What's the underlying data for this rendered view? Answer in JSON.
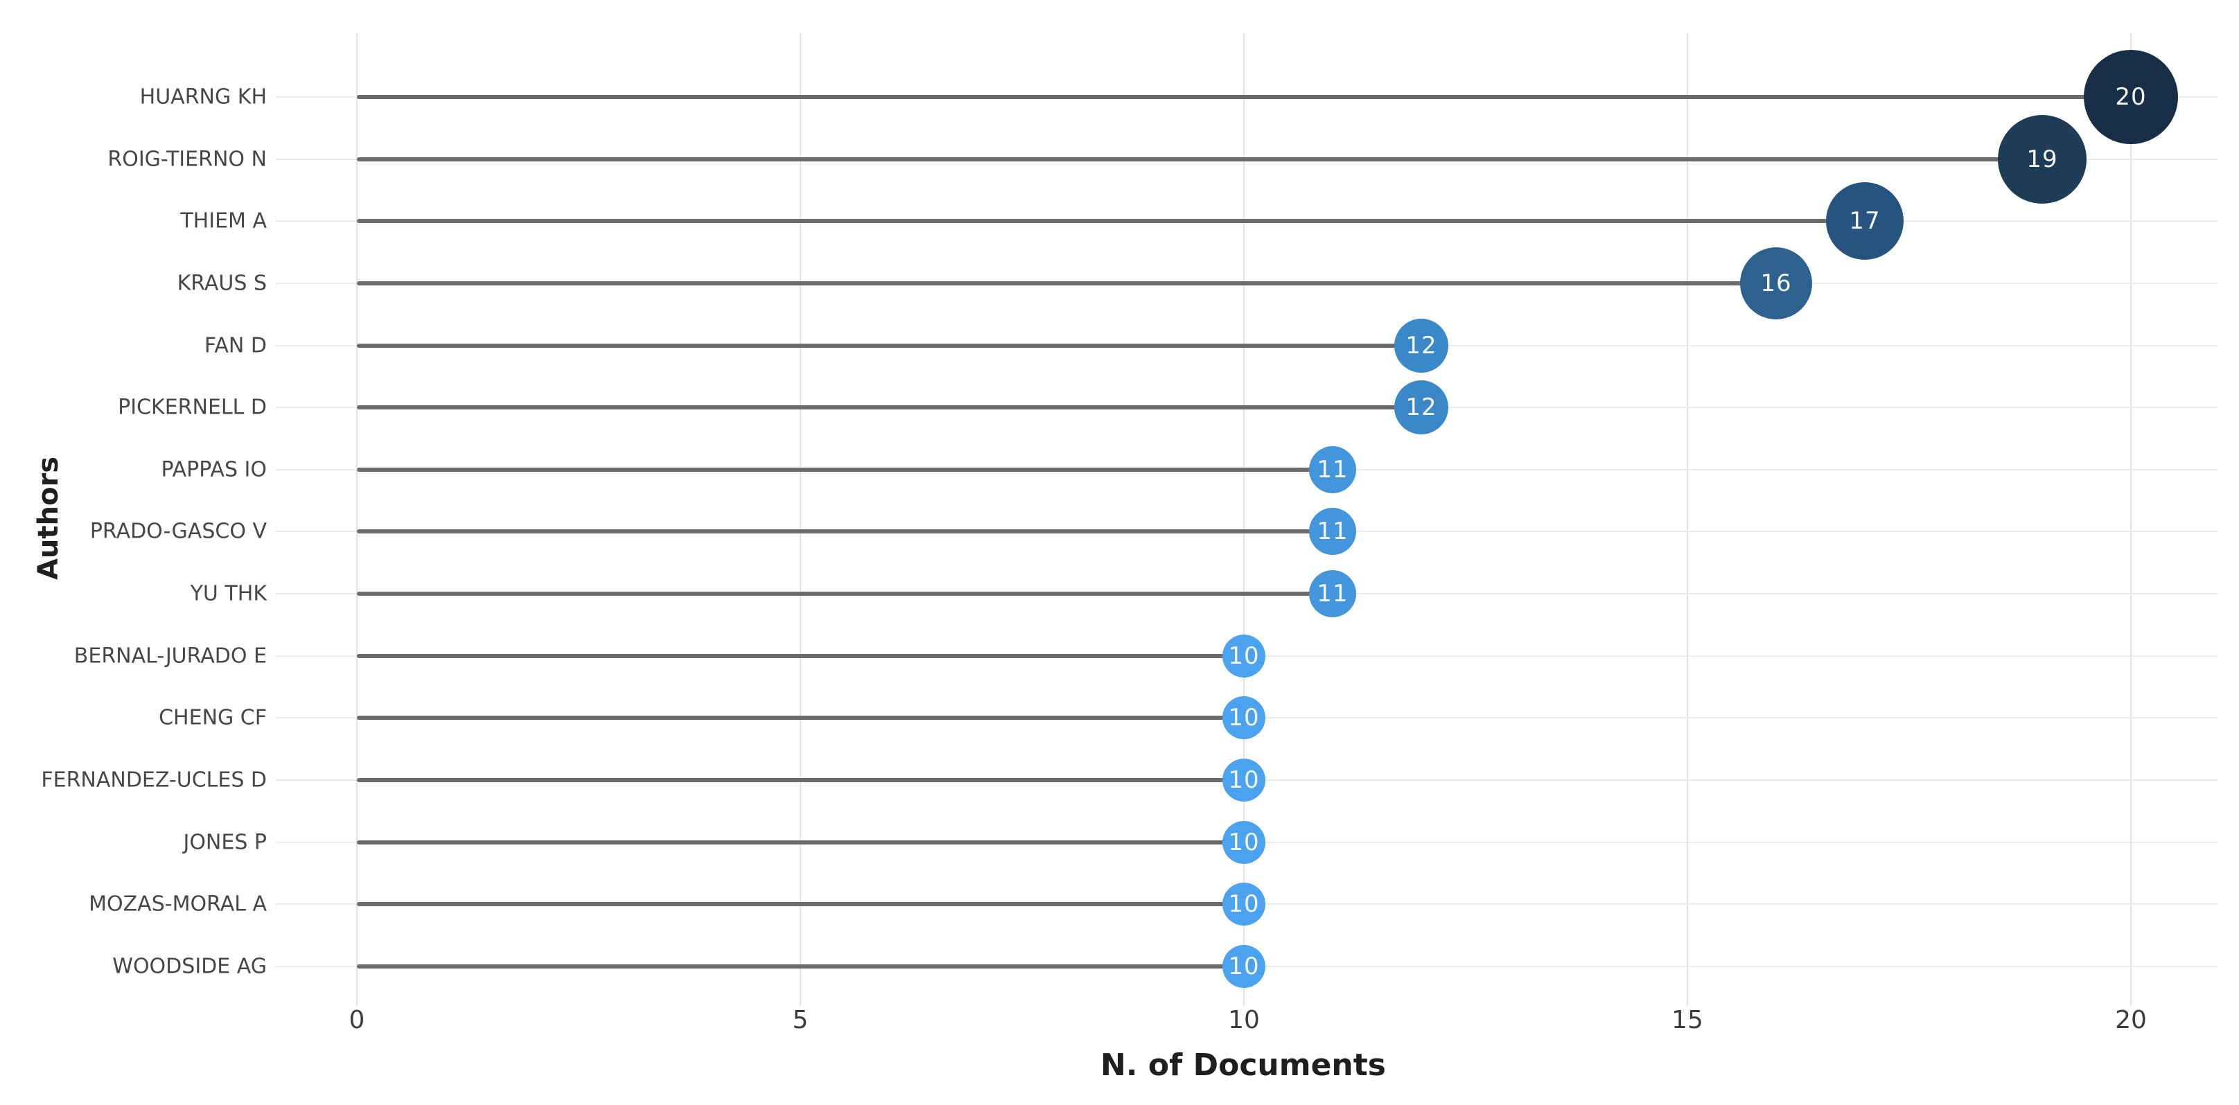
{
  "chart_data": {
    "type": "scatter",
    "variant": "horizontal-lollipop",
    "title": "",
    "categories": [
      "HUARNG KH",
      "ROIG-TIERNO N",
      "THIEM A",
      "KRAUS S",
      "FAN D",
      "PICKERNELL D",
      "PAPPAS IO",
      "PRADO-GASCO V",
      "YU THK",
      "BERNAL-JURADO E",
      "CHENG CF",
      "FERNANDEZ-UCLES D",
      "JONES P",
      "MOZAS-MORAL A",
      "WOODSIDE AG"
    ],
    "values": [
      20,
      19,
      17,
      16,
      12,
      12,
      11,
      11,
      11,
      10,
      10,
      10,
      10,
      10,
      10
    ],
    "xlabel": "N. of Documents",
    "ylabel": "Authors",
    "xlim": [
      0,
      20
    ],
    "xticks": [
      0,
      5,
      10,
      15,
      20
    ],
    "grid": true,
    "legend": false,
    "orientation": "horizontal"
  },
  "style": {
    "background": "#ffffff",
    "gridline_color": "#e4e4e4",
    "row_line_color": "#ebebeb",
    "stem_color": "#6b6b6b",
    "bubble_text_color": "#f5f6f8",
    "bubble_by_value": {
      "20": {
        "color": "#172e47",
        "radius": 68
      },
      "19": {
        "color": "#1e3b58",
        "radius": 64
      },
      "17": {
        "color": "#27547e",
        "radius": 56
      },
      "16": {
        "color": "#2d618e",
        "radius": 52
      },
      "12": {
        "color": "#3b88c9",
        "radius": 39
      },
      "11": {
        "color": "#4496dc",
        "radius": 34
      },
      "10": {
        "color": "#4ba2ee",
        "radius": 31
      }
    }
  }
}
